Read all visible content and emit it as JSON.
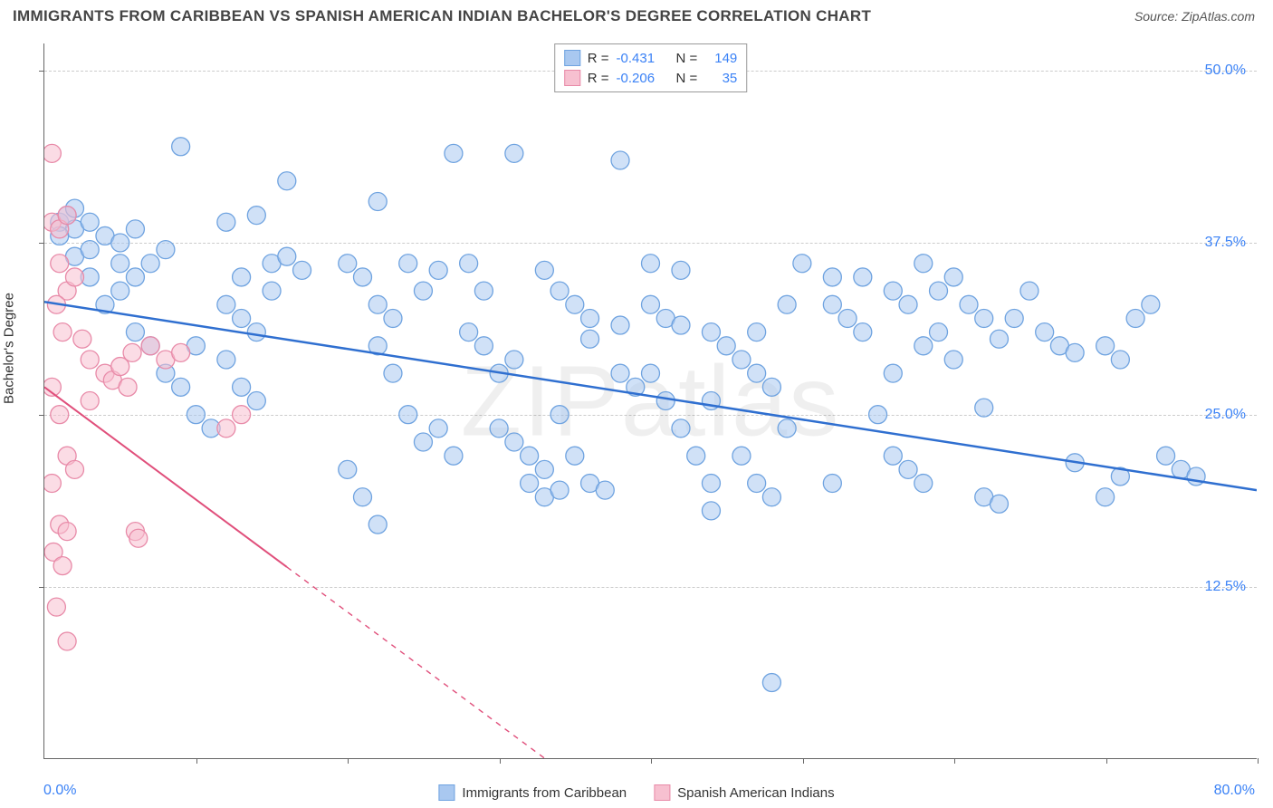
{
  "title": "IMMIGRANTS FROM CARIBBEAN VS SPANISH AMERICAN INDIAN BACHELOR'S DEGREE CORRELATION CHART",
  "source_label": "Source: ",
  "source_name": "ZipAtlas.com",
  "watermark": "ZIPatlas",
  "y_axis_label": "Bachelor's Degree",
  "chart": {
    "type": "scatter",
    "xlim": [
      0,
      80
    ],
    "ylim": [
      0,
      52
    ],
    "x_tick_step": 10,
    "y_ticks": [
      12.5,
      25.0,
      37.5,
      50.0
    ],
    "y_tick_labels": [
      "12.5%",
      "25.0%",
      "37.5%",
      "50.0%"
    ],
    "x_min_label": "0.0%",
    "x_max_label": "80.0%",
    "background_color": "#ffffff",
    "grid_color": "#cccccc",
    "axis_color": "#666666",
    "series": [
      {
        "name": "Immigrants from Caribbean",
        "color_fill": "#a9c8f0",
        "color_stroke": "#6fa3e0",
        "fill_opacity": 0.55,
        "marker_radius": 10,
        "R": "-0.431",
        "N": "149",
        "trend": {
          "x1": 0,
          "y1": 33.2,
          "x2": 80,
          "y2": 19.5,
          "color": "#2f6fd0",
          "width": 2.5
        },
        "points": [
          [
            1,
            39
          ],
          [
            1.5,
            39.5
          ],
          [
            2,
            38.5
          ],
          [
            2,
            40
          ],
          [
            1,
            38
          ],
          [
            2,
            36.5
          ],
          [
            3,
            39
          ],
          [
            3,
            37
          ],
          [
            4,
            38
          ],
          [
            5,
            37.5
          ],
          [
            5,
            36
          ],
          [
            6,
            38.5
          ],
          [
            3,
            35
          ],
          [
            4,
            33
          ],
          [
            5,
            34
          ],
          [
            6,
            35
          ],
          [
            7,
            36
          ],
          [
            8,
            37
          ],
          [
            9,
            44.5
          ],
          [
            12,
            39
          ],
          [
            14,
            39.5
          ],
          [
            15,
            36
          ],
          [
            16,
            36.5
          ],
          [
            17,
            35.5
          ],
          [
            12,
            33
          ],
          [
            13,
            32
          ],
          [
            14,
            31
          ],
          [
            15,
            34
          ],
          [
            10,
            30
          ],
          [
            12,
            29
          ],
          [
            13,
            27
          ],
          [
            14,
            26
          ],
          [
            8,
            28
          ],
          [
            9,
            27
          ],
          [
            10,
            25
          ],
          [
            11,
            24
          ],
          [
            16,
            42
          ],
          [
            22,
            40.5
          ],
          [
            20,
            36
          ],
          [
            21,
            35
          ],
          [
            22,
            33
          ],
          [
            23,
            32
          ],
          [
            24,
            36
          ],
          [
            25,
            34
          ],
          [
            26,
            35.5
          ],
          [
            22,
            30
          ],
          [
            23,
            28
          ],
          [
            24,
            25
          ],
          [
            25,
            23
          ],
          [
            26,
            24
          ],
          [
            27,
            22
          ],
          [
            20,
            21
          ],
          [
            21,
            19
          ],
          [
            22,
            17
          ],
          [
            28,
            36
          ],
          [
            29,
            34
          ],
          [
            30,
            28
          ],
          [
            30,
            24
          ],
          [
            31,
            23
          ],
          [
            32,
            22
          ],
          [
            33,
            21
          ],
          [
            32,
            20
          ],
          [
            33,
            19
          ],
          [
            34,
            19.5
          ],
          [
            28,
            31
          ],
          [
            29,
            30
          ],
          [
            31,
            29
          ],
          [
            33,
            35.5
          ],
          [
            34,
            34
          ],
          [
            35,
            33
          ],
          [
            36,
            32
          ],
          [
            38,
            31.5
          ],
          [
            36,
            30.5
          ],
          [
            31,
            44
          ],
          [
            34,
            25
          ],
          [
            35,
            22
          ],
          [
            36,
            20
          ],
          [
            37,
            19.5
          ],
          [
            38,
            28
          ],
          [
            39,
            27
          ],
          [
            40,
            33
          ],
          [
            41,
            32
          ],
          [
            42,
            31.5
          ],
          [
            40,
            28
          ],
          [
            41,
            26
          ],
          [
            42,
            24
          ],
          [
            43,
            22
          ],
          [
            44,
            20
          ],
          [
            40,
            36
          ],
          [
            42,
            35.5
          ],
          [
            38,
            43.5
          ],
          [
            44,
            31
          ],
          [
            45,
            30
          ],
          [
            46,
            29
          ],
          [
            47,
            28
          ],
          [
            48,
            27
          ],
          [
            46,
            22
          ],
          [
            47,
            20
          ],
          [
            48,
            19
          ],
          [
            49,
            24
          ],
          [
            50,
            36
          ],
          [
            52,
            35
          ],
          [
            52,
            33
          ],
          [
            53,
            32
          ],
          [
            54,
            31
          ],
          [
            48,
            5.5
          ],
          [
            54,
            35
          ],
          [
            56,
            34
          ],
          [
            57,
            33
          ],
          [
            58,
            30
          ],
          [
            56,
            28
          ],
          [
            55,
            25
          ],
          [
            56,
            22
          ],
          [
            57,
            21
          ],
          [
            58,
            20
          ],
          [
            59,
            31
          ],
          [
            60,
            29
          ],
          [
            61,
            33
          ],
          [
            62,
            32
          ],
          [
            63,
            30.5
          ],
          [
            58,
            36
          ],
          [
            60,
            35
          ],
          [
            59,
            34
          ],
          [
            62,
            19
          ],
          [
            63,
            18.5
          ],
          [
            64,
            32
          ],
          [
            65,
            34
          ],
          [
            66,
            31
          ],
          [
            67,
            30
          ],
          [
            68,
            29.5
          ],
          [
            70,
            30
          ],
          [
            71,
            29
          ],
          [
            72,
            32
          ],
          [
            73,
            33
          ],
          [
            68,
            21.5
          ],
          [
            70,
            19
          ],
          [
            71,
            20.5
          ],
          [
            74,
            22
          ],
          [
            75,
            21
          ],
          [
            76,
            20.5
          ],
          [
            62,
            25.5
          ],
          [
            52,
            20
          ],
          [
            44,
            18
          ],
          [
            44,
            26
          ],
          [
            47,
            31
          ],
          [
            49,
            33
          ],
          [
            27,
            44
          ],
          [
            13,
            35
          ],
          [
            7,
            30
          ],
          [
            6,
            31
          ]
        ]
      },
      {
        "name": "Spanish American Indians",
        "color_fill": "#f7c0d0",
        "color_stroke": "#e88aa8",
        "fill_opacity": 0.55,
        "marker_radius": 10,
        "R": "-0.206",
        "N": "35",
        "trend": {
          "x1": 0,
          "y1": 27.0,
          "x2": 33,
          "y2": 0,
          "color": "#e04f7b",
          "width": 2,
          "solid_until_x": 16
        },
        "points": [
          [
            0.5,
            39
          ],
          [
            1,
            38.5
          ],
          [
            1.5,
            39.5
          ],
          [
            0.5,
            44
          ],
          [
            1,
            36
          ],
          [
            1.5,
            34
          ],
          [
            0.8,
            33
          ],
          [
            1.2,
            31
          ],
          [
            2,
            35
          ],
          [
            2.5,
            30.5
          ],
          [
            3,
            29
          ],
          [
            0.5,
            27
          ],
          [
            1,
            25
          ],
          [
            1.5,
            22
          ],
          [
            2,
            21
          ],
          [
            0.5,
            20
          ],
          [
            1,
            17
          ],
          [
            1.5,
            16.5
          ],
          [
            0.6,
            15
          ],
          [
            1.2,
            14
          ],
          [
            0.8,
            11
          ],
          [
            1.5,
            8.5
          ],
          [
            3,
            26
          ],
          [
            4,
            28
          ],
          [
            4.5,
            27.5
          ],
          [
            5,
            28.5
          ],
          [
            5.5,
            27
          ],
          [
            5.8,
            29.5
          ],
          [
            6,
            16.5
          ],
          [
            6.2,
            16
          ],
          [
            7,
            30
          ],
          [
            8,
            29
          ],
          [
            9,
            29.5
          ],
          [
            12,
            24
          ],
          [
            13,
            25
          ]
        ]
      }
    ]
  },
  "legend_top": {
    "R_label": "R =",
    "N_label": "N ="
  },
  "legend_bottom": {
    "items": [
      "Immigrants from Caribbean",
      "Spanish American Indians"
    ]
  }
}
